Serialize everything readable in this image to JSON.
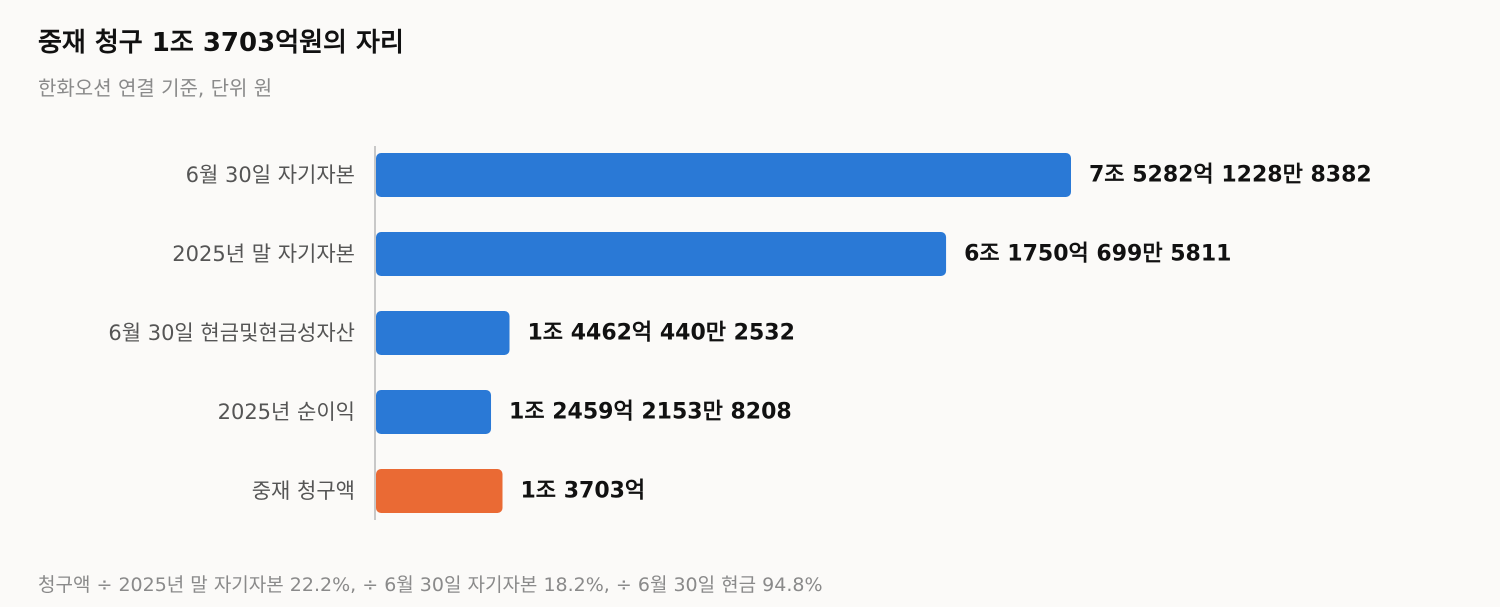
{
  "header": {
    "title": "중재 청구 1조 3703억원의 자리",
    "subtitle": "한화오션 연결 기준, 단위 원"
  },
  "footer": {
    "note": "청구액 ÷ 2025년 말 자기자본 22.2%, ÷ 6월 30일 자기자본 18.2%, ÷ 6월 30일 현금 94.8%"
  },
  "chart_data": {
    "type": "bar",
    "orientation": "horizontal",
    "title": "중재 청구 1조 3703억원의 자리",
    "subtitle": "한화오션 연결 기준, 단위 원",
    "categories": [
      "6월 30일 자기자본",
      "2025년 말 자기자본",
      "6월 30일 현금및현금성자산",
      "2025년 순이익",
      "중재 청구액"
    ],
    "values": [
      7528212288382,
      6175006995811,
      1446204402532,
      1245921538208,
      1370300000000
    ],
    "value_labels": [
      "7조 5282억 1228만 8382",
      "6조 1750억 699만 5811",
      "1조 4462억 440만 2532",
      "1조 2459억 2153만 8208",
      "1조 3703억"
    ],
    "colors": [
      "#2a79d6",
      "#2a79d6",
      "#2a79d6",
      "#2a79d6",
      "#ea6a34"
    ],
    "xlim": [
      0,
      7528212288382
    ],
    "grid": false,
    "legend": "none"
  }
}
